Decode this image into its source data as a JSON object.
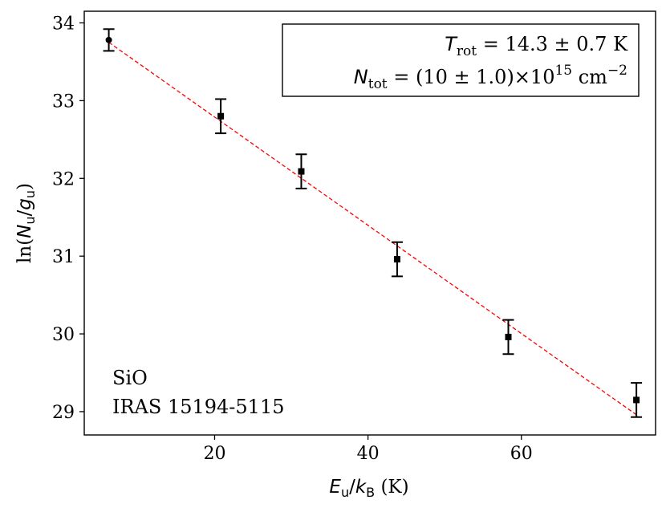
{
  "chart_data": {
    "type": "scatter",
    "xlabel": {
      "main": "E",
      "main_sub": "u",
      "sep": "/",
      "denom": "k",
      "denom_sub": "B",
      "unit": " (K)"
    },
    "ylabel": {
      "prefix": "ln(",
      "num": "N",
      "num_sub": "u",
      "sep": "/",
      "denom": "g",
      "denom_sub": "u",
      "suffix": ")"
    },
    "xlim": [
      3.0,
      77.5
    ],
    "ylim": [
      28.7,
      34.15
    ],
    "x_ticks": [
      20,
      40,
      60
    ],
    "y_ticks": [
      29,
      30,
      31,
      32,
      33,
      34
    ],
    "grid": false,
    "points": [
      {
        "x": 6.2,
        "y": 33.78,
        "yerr": 0.14
      },
      {
        "x": 20.8,
        "y": 32.8,
        "yerr": 0.22
      },
      {
        "x": 31.3,
        "y": 32.09,
        "yerr": 0.22
      },
      {
        "x": 43.8,
        "y": 30.96,
        "yerr": 0.22
      },
      {
        "x": 58.3,
        "y": 29.96,
        "yerr": 0.22
      },
      {
        "x": 75.0,
        "y": 29.15,
        "yerr": 0.22
      }
    ],
    "fit_line": {
      "x": [
        6.2,
        75.0
      ],
      "y": [
        33.75,
        28.96
      ],
      "color": "#ff0000",
      "style": "dashed"
    },
    "legend": {
      "position": "top-right",
      "line1": {
        "sym": "T",
        "sub": "rot",
        "text": " = 14.3 ± 0.7 K"
      },
      "line2": {
        "sym": "N",
        "sub": "tot",
        "text": " = (10 ± 1.0)×10",
        "sup": "15",
        "unit": " cm",
        "unit_sup": "−2"
      }
    },
    "annotation": {
      "line1": "SiO",
      "line2": "IRAS 15194-5115",
      "position": "bottom-left"
    }
  }
}
